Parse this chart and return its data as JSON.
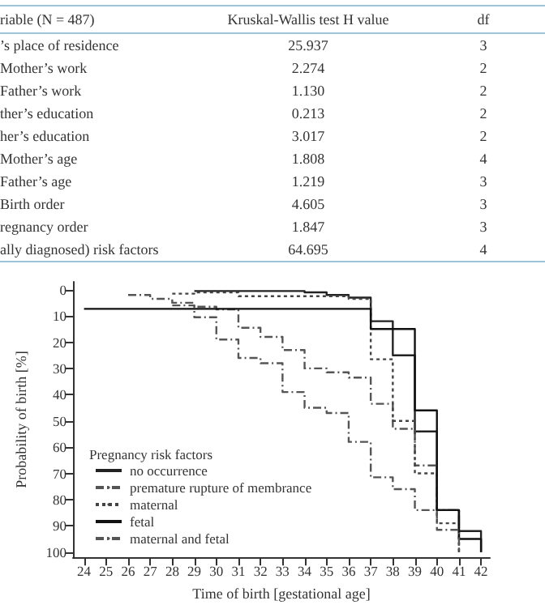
{
  "chart_data": [
    {
      "type": "other",
      "annotations": [
        "riable (N = 487)",
        "Kruskal-Wallis test H value",
        "df",
        "’s place of residence",
        "25.937",
        "3",
        "Mother’s work",
        "2.274",
        "2",
        "Father’s work",
        "1.130",
        "2",
        "ther’s education",
        "0.213",
        "2",
        "her’s education",
        "3.017",
        "2",
        "Mother’s age",
        "1.808",
        "4",
        "Father’s age",
        "1.219",
        "3",
        "Birth order",
        "4.605",
        "3",
        "regnancy order",
        "1.847",
        "3",
        "ally diagnosed) risk factors",
        "64.695",
        "4"
      ]
    },
    {
      "type": "step",
      "xlabel": "Time of birth [gestational age]",
      "ylabel": "Probability of birth [%]",
      "legend_title": "Pregnancy risk factors",
      "legend": "bottom left",
      "marker": "none",
      "xlim": [
        23.5,
        42.4
      ],
      "xticks": [
        24,
        25,
        26,
        27,
        28,
        29,
        30,
        31,
        32,
        33,
        34,
        35,
        36,
        37,
        38,
        39,
        40,
        41,
        42
      ],
      "ylim": [
        102,
        -3
      ],
      "yticks": [
        0,
        10,
        20,
        30,
        40,
        50,
        60,
        70,
        80,
        90,
        100
      ],
      "series": [
        {
          "name": "no occurrence",
          "color": "#222222",
          "line_style": "solid",
          "x": [
            29,
            34,
            35,
            36,
            37,
            38,
            39,
            40,
            41,
            42
          ],
          "values": [
            0.5,
            1,
            2,
            3,
            12,
            25,
            54,
            84,
            92,
            100
          ]
        },
        {
          "name": "premature rupture of membrance",
          "color": "#555555",
          "line_style": "dashed",
          "x": [
            26,
            27,
            28,
            29,
            30,
            31,
            32,
            33,
            34,
            35,
            36,
            37,
            38,
            39,
            40,
            41
          ],
          "values": [
            2,
            3.5,
            5,
            6.5,
            7.5,
            14.5,
            18,
            23,
            30,
            31.5,
            33.5,
            43.5,
            53,
            67,
            84,
            100
          ]
        },
        {
          "name": "maternal",
          "color": "#444444",
          "line_style": "dotted",
          "x": [
            28,
            29,
            31,
            36,
            37,
            38,
            39,
            40,
            41
          ],
          "values": [
            1.5,
            1,
            2.5,
            3.5,
            26.5,
            50,
            70,
            89,
            100
          ]
        },
        {
          "name": "fetal",
          "color": "#111111",
          "line_style": "solid",
          "x": [
            24,
            37,
            39,
            40,
            41,
            42
          ],
          "values": [
            7.3,
            15,
            46,
            84,
            95,
            100
          ]
        },
        {
          "name": "maternal and fetal",
          "color": "#555555",
          "line_style": "dashed",
          "x": [
            28,
            29,
            30,
            31,
            32,
            33,
            34,
            35,
            36,
            37,
            38,
            39,
            40,
            41
          ],
          "values": [
            6,
            10.5,
            19,
            26,
            28,
            39,
            45,
            47,
            58,
            71.5,
            76,
            84,
            91.5,
            100
          ]
        }
      ]
    }
  ]
}
